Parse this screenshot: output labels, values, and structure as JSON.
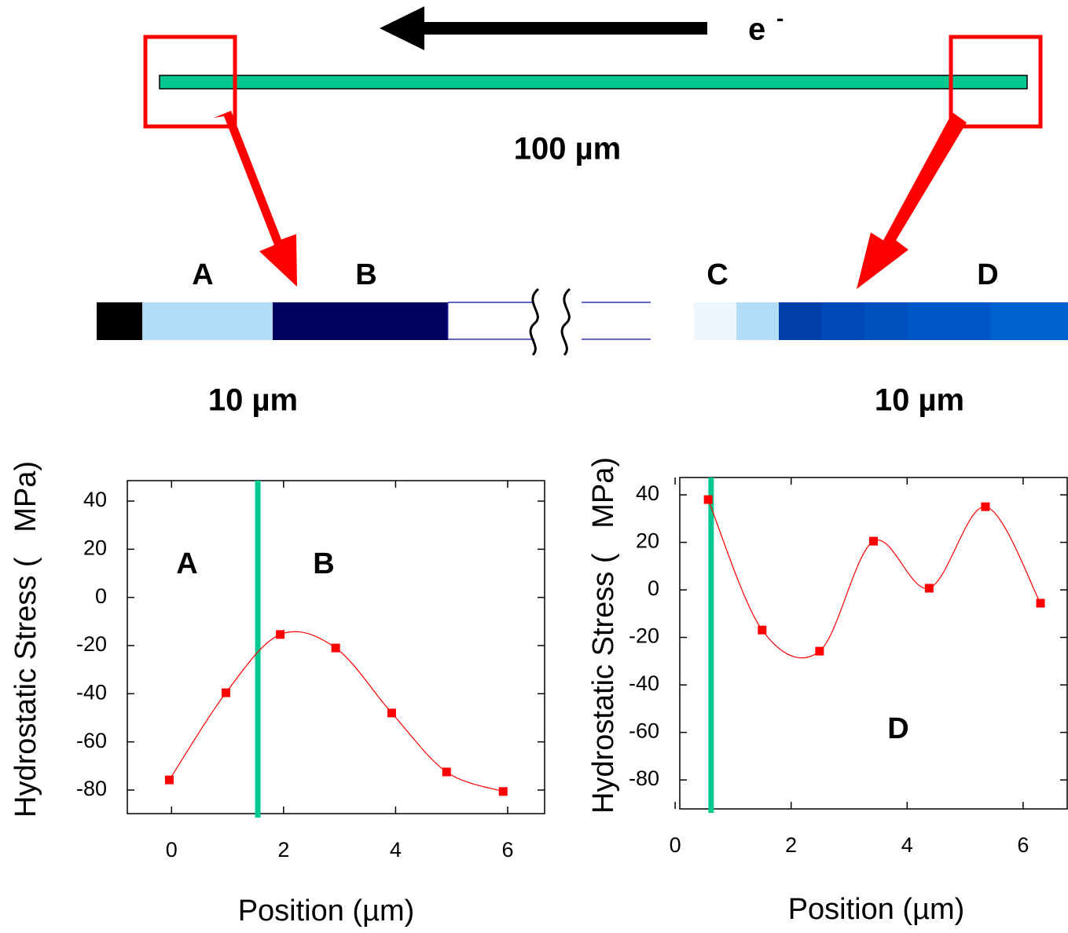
{
  "diagram": {
    "electron": "e",
    "electron_sup": "-",
    "wire_length": "100 µm",
    "zoom_labels": [
      "A",
      "B",
      "C",
      "D"
    ],
    "zoom_lengths": [
      "10 µm",
      "10 µm"
    ]
  },
  "chart_data": [
    {
      "type": "line",
      "x_label": "Position (µm)",
      "y_label": "Hydrostatic Stress (   MPa)",
      "x": [
        -0.04,
        0.97,
        1.94,
        2.93,
        3.93,
        4.91,
        5.92
      ],
      "values": [
        -75.8,
        -39.6,
        -15.4,
        -21,
        -48,
        -72.5,
        -80.6
      ],
      "color": "#ff0000",
      "vline": 1.54,
      "vline_color": "#00c890",
      "annotations": [
        "A",
        "B"
      ],
      "xlim": [
        -0.79,
        6.66
      ],
      "xticks": [
        0,
        2,
        4,
        6
      ],
      "ylim": [
        -89.8,
        48.5
      ],
      "yticks": [
        40,
        20,
        0,
        -20,
        -40,
        -60,
        -80
      ]
    },
    {
      "type": "line",
      "x_label": "Position (µm)",
      "y_label": "Hydrostatic Stress (   MPa)",
      "x": [
        0.57,
        1.5,
        2.49,
        3.42,
        4.38,
        5.35,
        6.3
      ],
      "values": [
        38,
        -16.9,
        -25.8,
        20.5,
        0.7,
        35,
        -5.6
      ],
      "color": "#ff0000",
      "vline": 0.62,
      "vline_color": "#00c890",
      "annotations": [
        "D"
      ],
      "xlim": [
        0.08,
        6.76
      ],
      "xticks": [
        0,
        2,
        4,
        6
      ],
      "ylim": [
        -92.2,
        47.3
      ],
      "yticks": [
        40,
        20,
        0,
        -20,
        -40,
        -60,
        -80
      ]
    }
  ]
}
